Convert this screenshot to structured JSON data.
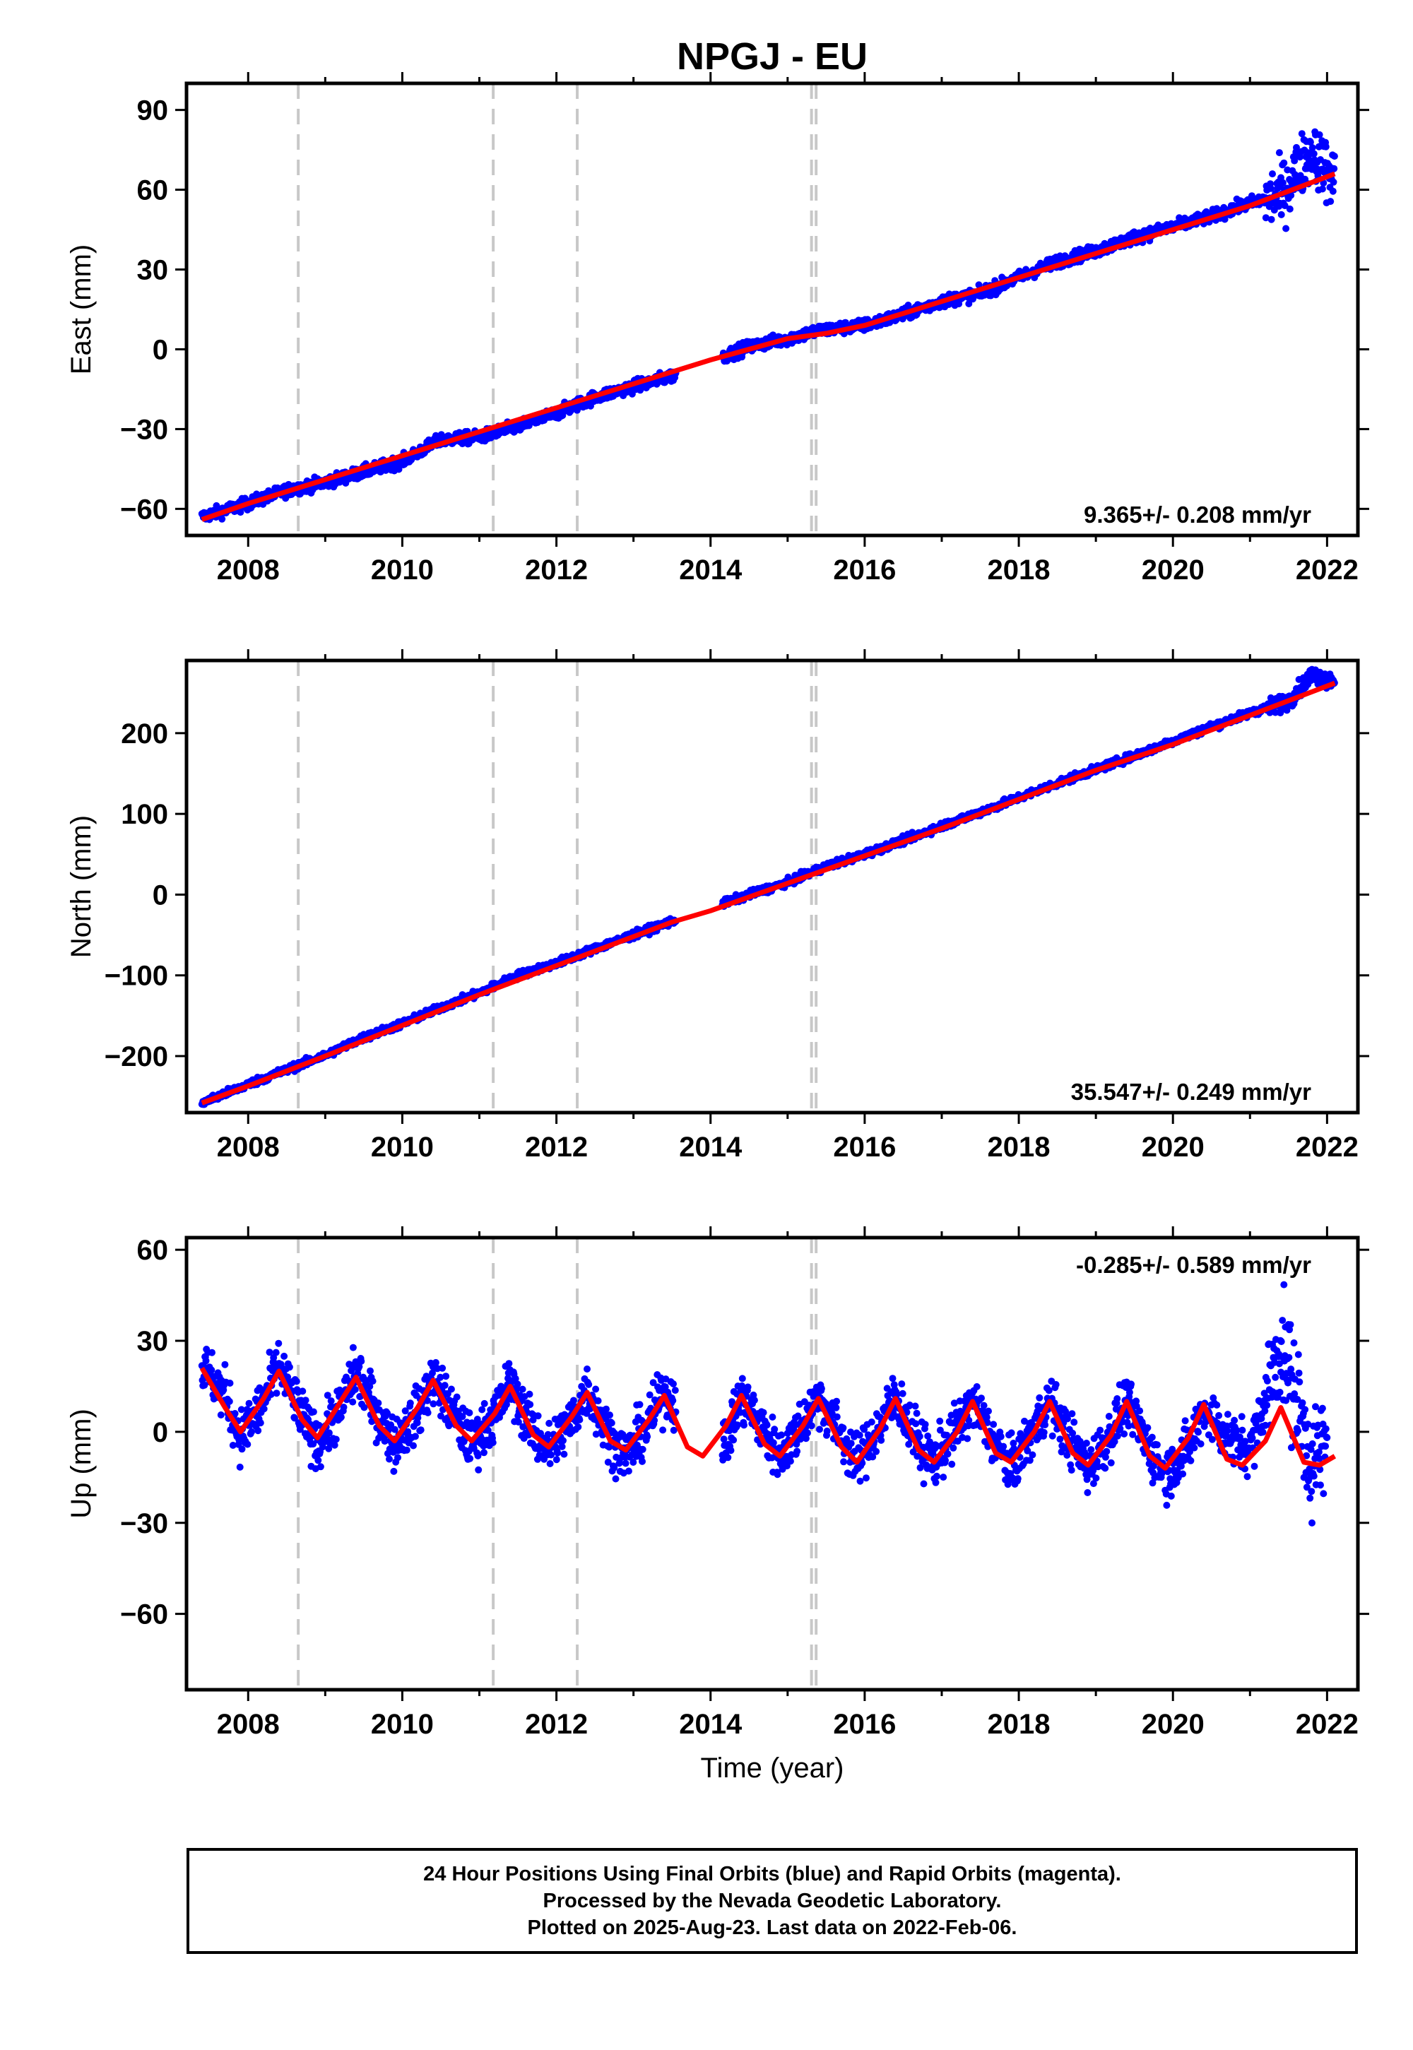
{
  "title": "NPGJ - EU",
  "xlabel": "Time (year)",
  "footer": {
    "line1": "24 Hour Positions Using Final Orbits (blue) and Rapid Orbits (magenta).",
    "line2": "Processed by the Nevada Geodetic Laboratory.",
    "line3": "Plotted on 2025-Aug-23. Last data on 2022-Feb-06."
  },
  "colors": {
    "data": "#0000ff",
    "model": "#ff0000",
    "event_lines": "#c8c8c8",
    "frame": "#000000"
  },
  "chart_data": [
    {
      "type": "scatter",
      "panel": "east",
      "ylabel": "East (mm)",
      "xlim": [
        2007.2,
        2022.4
      ],
      "ylim": [
        -70,
        100
      ],
      "x_ticks": [
        2008,
        2010,
        2012,
        2014,
        2016,
        2018,
        2020,
        2022
      ],
      "y_ticks": [
        -60,
        -30,
        0,
        30,
        60,
        90
      ],
      "rate_label": "9.365+/- 0.208 mm/yr",
      "event_lines": [
        2008.65,
        2011.18,
        2012.27,
        2015.31,
        2015.37
      ],
      "series": [
        {
          "role": "daily positions",
          "color": "#0000ff",
          "x": [
            2007.4,
            2008.0,
            2008.5,
            2009.0,
            2009.5,
            2010.0,
            2010.5,
            2011.0,
            2011.5,
            2012.0,
            2012.5,
            2013.0,
            2013.5,
            2014.5,
            2015.0,
            2015.4,
            2016.0,
            2016.5,
            2017.0,
            2017.5,
            2018.0,
            2018.5,
            2019.0,
            2019.5,
            2020.0,
            2020.5,
            2021.0,
            2021.4,
            2021.8,
            2022.1
          ],
          "y": [
            -63,
            -58,
            -53,
            -50,
            -46,
            -42,
            -34,
            -33,
            -29,
            -24,
            -18,
            -14,
            -10,
            1,
            4,
            7,
            9,
            13,
            18,
            21,
            27,
            33,
            37,
            42,
            46,
            50,
            55,
            58,
            75,
            63
          ]
        },
        {
          "role": "model fit",
          "color": "#ff0000",
          "x": [
            2007.4,
            2008.0,
            2009.0,
            2010.0,
            2011.0,
            2012.0,
            2013.0,
            2014.0,
            2015.0,
            2015.5,
            2016.0,
            2017.0,
            2018.0,
            2019.0,
            2020.0,
            2021.0,
            2022.1
          ],
          "y": [
            -64,
            -58,
            -49,
            -40,
            -31,
            -22,
            -13,
            -4,
            4,
            6,
            9,
            18,
            27,
            36,
            45,
            54,
            66
          ]
        }
      ]
    },
    {
      "type": "scatter",
      "panel": "north",
      "ylabel": "North (mm)",
      "xlim": [
        2007.2,
        2022.4
      ],
      "ylim": [
        -270,
        290
      ],
      "x_ticks": [
        2008,
        2010,
        2012,
        2014,
        2016,
        2018,
        2020,
        2022
      ],
      "y_ticks": [
        -200,
        -100,
        0,
        100,
        200
      ],
      "rate_label": "35.547+/- 0.249 mm/yr",
      "event_lines": [
        2008.65,
        2011.18,
        2012.27,
        2015.31,
        2015.37
      ],
      "series": [
        {
          "role": "daily positions",
          "color": "#0000ff",
          "x": [
            2007.4,
            2008.0,
            2008.5,
            2009.0,
            2009.5,
            2010.0,
            2010.5,
            2011.0,
            2011.5,
            2012.0,
            2012.5,
            2013.0,
            2013.5,
            2014.5,
            2015.0,
            2015.5,
            2016.0,
            2016.5,
            2017.0,
            2017.5,
            2018.0,
            2018.5,
            2019.0,
            2019.5,
            2020.0,
            2020.5,
            2021.0,
            2021.5,
            2021.8,
            2022.1
          ],
          "y": [
            -258,
            -235,
            -217,
            -199,
            -177,
            -160,
            -140,
            -122,
            -100,
            -85,
            -67,
            -50,
            -33,
            0,
            15,
            35,
            50,
            67,
            85,
            102,
            120,
            138,
            155,
            172,
            190,
            208,
            225,
            240,
            272,
            265
          ]
        },
        {
          "role": "model fit",
          "color": "#ff0000",
          "x": [
            2007.4,
            2008.0,
            2009.0,
            2010.0,
            2011.0,
            2012.0,
            2013.0,
            2013.5,
            2014.0,
            2015.0,
            2016.0,
            2017.0,
            2018.0,
            2019.0,
            2020.0,
            2021.0,
            2022.1
          ],
          "y": [
            -258,
            -237,
            -200,
            -162,
            -124,
            -88,
            -52,
            -34,
            -20,
            14,
            48,
            82,
            118,
            154,
            186,
            222,
            262
          ]
        }
      ]
    },
    {
      "type": "scatter",
      "panel": "up",
      "ylabel": "Up (mm)",
      "xlim": [
        2007.2,
        2022.4
      ],
      "ylim": [
        -85,
        64
      ],
      "x_ticks": [
        2008,
        2010,
        2012,
        2014,
        2016,
        2018,
        2020,
        2022
      ],
      "y_ticks": [
        -60,
        -30,
        0,
        30,
        60
      ],
      "rate_label": "-0.285+/- 0.589 mm/yr",
      "event_lines": [
        2008.65,
        2011.18,
        2012.27,
        2015.31,
        2015.37
      ],
      "series": [
        {
          "role": "daily positions",
          "color": "#0000ff",
          "x": [
            2007.4,
            2007.7,
            2007.9,
            2008.2,
            2008.4,
            2008.7,
            2008.9,
            2009.2,
            2009.4,
            2009.7,
            2009.9,
            2010.2,
            2010.4,
            2010.7,
            2010.9,
            2011.2,
            2011.4,
            2011.7,
            2011.9,
            2012.2,
            2012.4,
            2012.7,
            2012.9,
            2013.2,
            2013.4,
            2014.2,
            2014.4,
            2014.7,
            2014.9,
            2015.2,
            2015.4,
            2015.7,
            2015.9,
            2016.2,
            2016.4,
            2016.7,
            2016.9,
            2017.2,
            2017.4,
            2017.7,
            2017.9,
            2018.2,
            2018.4,
            2018.7,
            2018.9,
            2019.2,
            2019.4,
            2019.7,
            2019.9,
            2020.2,
            2020.4,
            2020.7,
            2021.0,
            2021.2,
            2021.4,
            2021.6,
            2021.8,
            2022.0
          ],
          "y": [
            22,
            12,
            -2,
            10,
            22,
            5,
            -4,
            8,
            20,
            5,
            -4,
            6,
            18,
            4,
            -4,
            5,
            16,
            0,
            -6,
            4,
            14,
            -2,
            -8,
            3,
            13,
            -4,
            12,
            0,
            -8,
            3,
            12,
            -2,
            -10,
            2,
            12,
            -4,
            -10,
            1,
            10,
            -4,
            -12,
            1,
            10,
            -4,
            -12,
            0,
            10,
            -6,
            -14,
            -6,
            8,
            -2,
            -6,
            10,
            30,
            10,
            -10,
            -6
          ]
        },
        {
          "role": "model fit",
          "color": "#ff0000",
          "x": [
            2007.4,
            2007.7,
            2007.9,
            2008.2,
            2008.4,
            2008.7,
            2008.9,
            2009.2,
            2009.4,
            2009.7,
            2009.9,
            2010.2,
            2010.4,
            2010.7,
            2010.9,
            2011.2,
            2011.4,
            2011.7,
            2011.9,
            2012.2,
            2012.4,
            2012.7,
            2012.9,
            2013.2,
            2013.4,
            2013.7,
            2013.9,
            2014.2,
            2014.4,
            2014.7,
            2014.9,
            2015.2,
            2015.4,
            2015.7,
            2015.9,
            2016.2,
            2016.4,
            2016.7,
            2016.9,
            2017.2,
            2017.4,
            2017.7,
            2017.9,
            2018.2,
            2018.4,
            2018.7,
            2018.9,
            2019.2,
            2019.4,
            2019.7,
            2019.9,
            2020.2,
            2020.4,
            2020.7,
            2020.9,
            2021.2,
            2021.4,
            2021.7,
            2021.9,
            2022.1
          ],
          "y": [
            21,
            8,
            0,
            11,
            20,
            4,
            -2,
            10,
            18,
            2,
            -3,
            8,
            17,
            2,
            -3,
            6,
            15,
            -1,
            -5,
            5,
            13,
            -3,
            -6,
            4,
            12,
            -5,
            -8,
            2,
            12,
            -4,
            -8,
            2,
            11,
            -5,
            -10,
            1,
            11,
            -6,
            -10,
            0,
            10,
            -7,
            -10,
            0,
            10,
            -7,
            -11,
            -1,
            10,
            -8,
            -12,
            -2,
            9,
            -9,
            -11,
            -3,
            8,
            -10,
            -11,
            -8
          ]
        }
      ]
    }
  ]
}
